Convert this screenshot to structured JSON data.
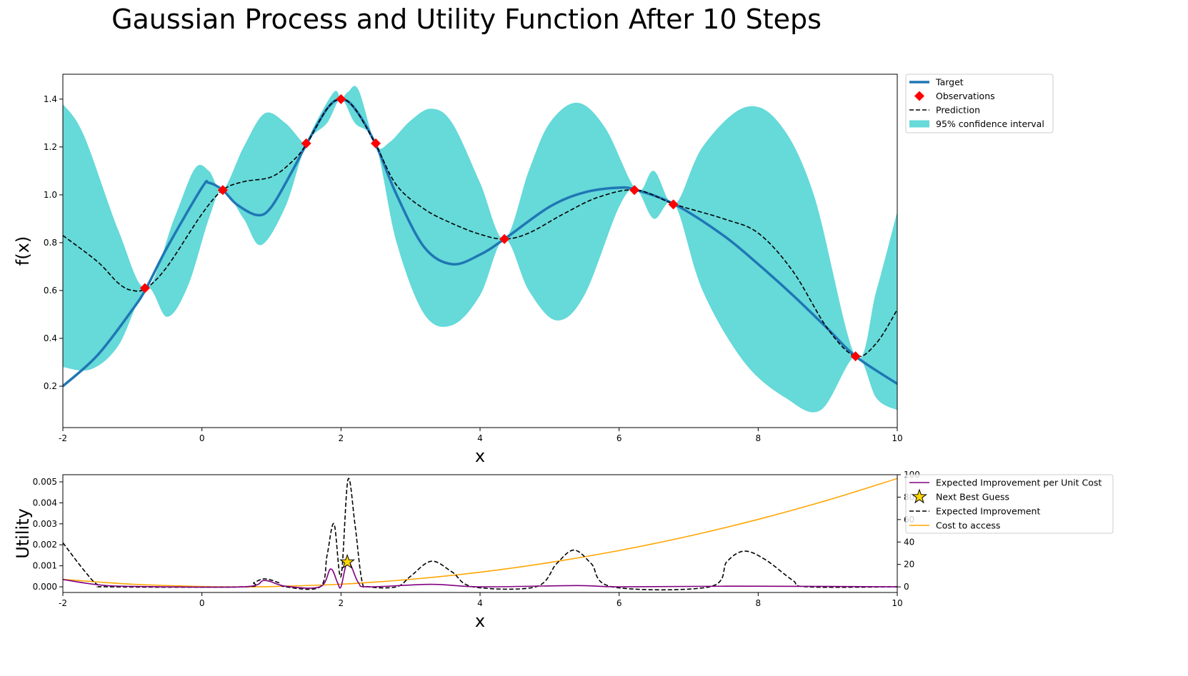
{
  "chart_data": [
    {
      "type": "line",
      "title": "Gaussian Process and Utility Function After 10 Steps",
      "xlabel": "x",
      "ylabel": "f(x)",
      "xlim": [
        -2,
        10
      ],
      "ylim": [
        0.027,
        1.504
      ],
      "xticks": [
        -2,
        0,
        2,
        4,
        6,
        8,
        10
      ],
      "yticks": [
        0.2,
        0.4,
        0.6,
        0.8,
        1.0,
        1.2,
        1.4
      ],
      "ytick_labels": [
        "0.2",
        "0.4",
        "0.6",
        "0.8",
        "1.0",
        "1.2",
        "1.4"
      ],
      "legend_position": "outside-top-right",
      "legend": [
        "Target",
        "Observations",
        "Prediction",
        "95% confidence interval"
      ],
      "colors": {
        "target": "#1f77b4",
        "observations": "#ff0000",
        "prediction": "#000000",
        "ci": "#66d9d9"
      },
      "target": [
        [
          -2,
          0.2
        ],
        [
          -1.5,
          0.33
        ],
        [
          -1,
          0.52
        ],
        [
          -0.8,
          0.61
        ],
        [
          -0.5,
          0.78
        ],
        [
          0,
          1.03
        ],
        [
          0.1,
          1.05
        ],
        [
          0.3,
          1.02
        ],
        [
          0.5,
          0.96
        ],
        [
          0.8,
          0.915
        ],
        [
          1.0,
          0.95
        ],
        [
          1.3,
          1.1
        ],
        [
          1.5,
          1.21
        ],
        [
          1.8,
          1.36
        ],
        [
          2.0,
          1.4
        ],
        [
          2.2,
          1.36
        ],
        [
          2.5,
          1.21
        ],
        [
          2.8,
          1.0
        ],
        [
          3.2,
          0.78
        ],
        [
          3.6,
          0.71
        ],
        [
          4.0,
          0.75
        ],
        [
          4.35,
          0.815
        ],
        [
          5.0,
          0.95
        ],
        [
          5.5,
          1.01
        ],
        [
          6.0,
          1.03
        ],
        [
          6.25,
          1.02
        ],
        [
          6.8,
          0.96
        ],
        [
          7.5,
          0.83
        ],
        [
          8.0,
          0.71
        ],
        [
          8.5,
          0.58
        ],
        [
          9.0,
          0.44
        ],
        [
          9.4,
          0.325
        ],
        [
          10,
          0.21
        ]
      ],
      "prediction": [
        [
          -2,
          0.83
        ],
        [
          -1.5,
          0.72
        ],
        [
          -1.2,
          0.63
        ],
        [
          -1,
          0.6
        ],
        [
          -0.8,
          0.61
        ],
        [
          -0.5,
          0.7
        ],
        [
          0,
          0.92
        ],
        [
          0.3,
          1.02
        ],
        [
          0.6,
          1.055
        ],
        [
          1.0,
          1.075
        ],
        [
          1.3,
          1.14
        ],
        [
          1.5,
          1.21
        ],
        [
          1.8,
          1.36
        ],
        [
          2.0,
          1.4
        ],
        [
          2.2,
          1.36
        ],
        [
          2.5,
          1.21
        ],
        [
          2.8,
          1.04
        ],
        [
          3.2,
          0.94
        ],
        [
          3.6,
          0.88
        ],
        [
          4.0,
          0.835
        ],
        [
          4.35,
          0.815
        ],
        [
          4.7,
          0.84
        ],
        [
          5.2,
          0.92
        ],
        [
          5.7,
          0.99
        ],
        [
          6.25,
          1.02
        ],
        [
          6.8,
          0.96
        ],
        [
          7.5,
          0.9
        ],
        [
          8.0,
          0.84
        ],
        [
          8.5,
          0.68
        ],
        [
          9.0,
          0.44
        ],
        [
          9.4,
          0.325
        ],
        [
          9.7,
          0.38
        ],
        [
          10,
          0.52
        ]
      ],
      "ci_upper": [
        [
          -2,
          1.38
        ],
        [
          -1.7,
          1.25
        ],
        [
          -1.2,
          0.85
        ],
        [
          -0.8,
          0.61
        ],
        [
          -0.4,
          0.9
        ],
        [
          -0.1,
          1.11
        ],
        [
          0.1,
          1.1
        ],
        [
          0.3,
          1.02
        ],
        [
          0.6,
          1.2
        ],
        [
          0.9,
          1.34
        ],
        [
          1.2,
          1.3
        ],
        [
          1.5,
          1.21
        ],
        [
          1.6,
          1.28
        ],
        [
          1.9,
          1.43
        ],
        [
          2.0,
          1.4
        ],
        [
          2.1,
          1.43
        ],
        [
          2.25,
          1.44
        ],
        [
          2.5,
          1.21
        ],
        [
          2.7,
          1.22
        ],
        [
          3.0,
          1.31
        ],
        [
          3.3,
          1.36
        ],
        [
          3.6,
          1.3
        ],
        [
          4.0,
          1.05
        ],
        [
          4.35,
          0.815
        ],
        [
          4.7,
          1.1
        ],
        [
          5.0,
          1.3
        ],
        [
          5.4,
          1.385
        ],
        [
          5.8,
          1.28
        ],
        [
          6.25,
          1.02
        ],
        [
          6.5,
          1.1
        ],
        [
          6.8,
          0.96
        ],
        [
          7.2,
          1.2
        ],
        [
          7.8,
          1.365
        ],
        [
          8.3,
          1.3
        ],
        [
          8.8,
          1.0
        ],
        [
          9.4,
          0.325
        ],
        [
          9.7,
          0.6
        ],
        [
          10,
          0.93
        ]
      ],
      "ci_lower": [
        [
          -2,
          0.28
        ],
        [
          -1.6,
          0.27
        ],
        [
          -1.2,
          0.37
        ],
        [
          -0.8,
          0.61
        ],
        [
          -0.5,
          0.49
        ],
        [
          -0.2,
          0.62
        ],
        [
          0.1,
          0.9
        ],
        [
          0.3,
          1.02
        ],
        [
          0.6,
          0.9
        ],
        [
          0.85,
          0.79
        ],
        [
          1.2,
          0.95
        ],
        [
          1.5,
          1.21
        ],
        [
          1.8,
          1.3
        ],
        [
          2.0,
          1.4
        ],
        [
          2.2,
          1.3
        ],
        [
          2.5,
          1.21
        ],
        [
          2.8,
          0.8
        ],
        [
          3.2,
          0.5
        ],
        [
          3.6,
          0.455
        ],
        [
          4.0,
          0.58
        ],
        [
          4.35,
          0.815
        ],
        [
          4.7,
          0.6
        ],
        [
          5.1,
          0.475
        ],
        [
          5.5,
          0.58
        ],
        [
          6.0,
          0.95
        ],
        [
          6.25,
          1.02
        ],
        [
          6.5,
          0.9
        ],
        [
          6.8,
          0.96
        ],
        [
          7.2,
          0.6
        ],
        [
          7.8,
          0.3
        ],
        [
          8.4,
          0.15
        ],
        [
          8.9,
          0.1
        ],
        [
          9.4,
          0.325
        ],
        [
          9.7,
          0.15
        ],
        [
          10,
          0.1
        ]
      ],
      "observations": [
        [
          -0.82,
          0.61
        ],
        [
          0.3,
          1.02
        ],
        [
          1.5,
          1.215
        ],
        [
          2.0,
          1.4
        ],
        [
          2.5,
          1.215
        ],
        [
          4.35,
          0.815
        ],
        [
          6.22,
          1.02
        ],
        [
          6.78,
          0.96
        ],
        [
          9.4,
          0.325
        ]
      ]
    },
    {
      "type": "line",
      "xlabel": "x",
      "ylabel": "Utility",
      "xlim": [
        -2,
        10
      ],
      "ylim": [
        -0.00027,
        0.00534
      ],
      "ylim_right": [
        -5,
        100
      ],
      "xticks": [
        -2,
        0,
        2,
        4,
        6,
        8,
        10
      ],
      "yticks": [
        0,
        0.001,
        0.002,
        0.003,
        0.004,
        0.005
      ],
      "ytick_labels": [
        "0.000",
        "0.001",
        "0.002",
        "0.003",
        "0.004",
        "0.005"
      ],
      "yticks_right": [
        0,
        20,
        40,
        60,
        80,
        100
      ],
      "legend_position": "outside-top-right",
      "legend": [
        "Expected Improvement per Unit Cost",
        "Next Best Guess",
        "Expected Improvement",
        "Cost to access"
      ],
      "colors": {
        "ei_per_cost": "#800080",
        "star": "#ffd700",
        "ei": "#000000",
        "cost": "#ffa500"
      },
      "ei_per_cost": [
        [
          -2,
          0.00035
        ],
        [
          -1.5,
          0.0001
        ],
        [
          -1,
          2e-05
        ],
        [
          0.6,
          0
        ],
        [
          0.9,
          0.0003
        ],
        [
          1.2,
          3e-05
        ],
        [
          1.7,
          0
        ],
        [
          1.85,
          0.00085
        ],
        [
          1.95,
          0.0002
        ],
        [
          2.0,
          0
        ],
        [
          2.1,
          0.0012
        ],
        [
          2.25,
          0.0002
        ],
        [
          2.4,
          0
        ],
        [
          3.3,
          0.00012
        ],
        [
          4.0,
          0
        ],
        [
          5.4,
          6e-05
        ],
        [
          6,
          0
        ],
        [
          7.8,
          3e-05
        ],
        [
          10,
          0
        ]
      ],
      "ei": [
        [
          -2,
          0.0021
        ],
        [
          -1.7,
          0.0008
        ],
        [
          -1.5,
          0.0001
        ],
        [
          -1.3,
          0
        ],
        [
          0.6,
          0
        ],
        [
          0.75,
          0.0002
        ],
        [
          0.9,
          0.00038
        ],
        [
          1.1,
          0.0002
        ],
        [
          1.2,
          0
        ],
        [
          1.7,
          0
        ],
        [
          1.8,
          0.0015
        ],
        [
          1.9,
          0.003
        ],
        [
          2.0,
          0.0005
        ],
        [
          2.1,
          0.0051
        ],
        [
          2.2,
          0.003
        ],
        [
          2.3,
          0.0003
        ],
        [
          2.4,
          0
        ],
        [
          2.8,
          0
        ],
        [
          3.0,
          0.0005
        ],
        [
          3.3,
          0.00122
        ],
        [
          3.6,
          0.0007
        ],
        [
          3.9,
          0
        ],
        [
          4.8,
          0
        ],
        [
          5.1,
          0.0011
        ],
        [
          5.35,
          0.00175
        ],
        [
          5.6,
          0.0011
        ],
        [
          5.9,
          0
        ],
        [
          7.3,
          0
        ],
        [
          7.55,
          0.0012
        ],
        [
          7.8,
          0.0017
        ],
        [
          8.1,
          0.0013
        ],
        [
          8.5,
          0.0003
        ],
        [
          8.7,
          0
        ],
        [
          10,
          0
        ]
      ],
      "cost": [
        [
          -2,
          6.7
        ],
        [
          -1,
          2.4
        ],
        [
          0,
          0.3
        ],
        [
          0.5,
          0
        ],
        [
          1,
          0.3
        ],
        [
          2,
          2.4
        ],
        [
          3,
          6.7
        ],
        [
          4,
          13.1
        ],
        [
          5,
          21.7
        ],
        [
          6,
          32.4
        ],
        [
          7,
          45.2
        ],
        [
          8,
          60.2
        ],
        [
          9,
          77.3
        ],
        [
          10,
          96.6
        ]
      ],
      "next_best_guess": [
        2.09,
        0.00118
      ]
    }
  ]
}
